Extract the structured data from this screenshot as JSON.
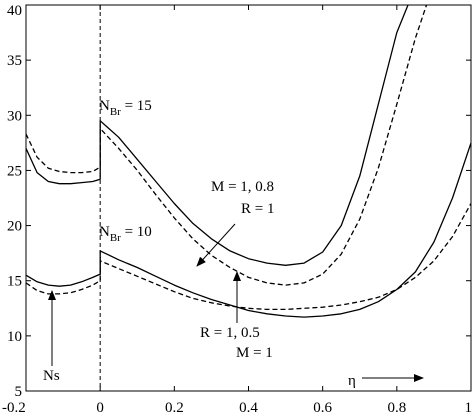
{
  "chart_data": {
    "type": "line",
    "xlim": [
      -0.2,
      1.0
    ],
    "ylim": [
      5,
      40
    ],
    "x_ticks": [
      "-0.2",
      "0",
      "0.2",
      "0.4",
      "0.6",
      "0.8",
      "1"
    ],
    "y_ticks": [
      "5",
      "10",
      "15",
      "20",
      "25",
      "30",
      "35",
      "40"
    ],
    "x_tick_values": [
      -0.2,
      0,
      0.2,
      0.4,
      0.6,
      0.8,
      1.0
    ],
    "y_tick_values": [
      5,
      10,
      15,
      20,
      25,
      30,
      35,
      40
    ],
    "vertical_dashed_x": 0,
    "grid": false,
    "series": [
      {
        "style": "solid",
        "x": [
          -0.2,
          -0.17,
          -0.14,
          -0.11,
          -0.08,
          -0.05,
          -0.02,
          0,
          0.0001,
          0.05,
          0.1,
          0.15,
          0.2,
          0.25,
          0.3,
          0.35,
          0.4,
          0.45,
          0.5,
          0.55,
          0.6,
          0.65,
          0.7,
          0.75,
          0.8,
          0.83
        ],
        "y": [
          27.0,
          24.8,
          24.0,
          23.8,
          23.8,
          23.9,
          24.0,
          24.2,
          29.5,
          28.0,
          26.0,
          24.0,
          22.0,
          20.2,
          18.8,
          17.7,
          17.0,
          16.6,
          16.4,
          16.6,
          17.6,
          20.0,
          24.5,
          31.0,
          37.5,
          40.0
        ]
      },
      {
        "style": "dashed",
        "x": [
          -0.2,
          -0.17,
          -0.14,
          -0.11,
          -0.08,
          -0.05,
          -0.02,
          0,
          0.0001,
          0.05,
          0.1,
          0.15,
          0.2,
          0.25,
          0.3,
          0.35,
          0.4,
          0.45,
          0.5,
          0.55,
          0.6,
          0.65,
          0.7,
          0.75,
          0.8,
          0.85,
          0.88
        ],
        "y": [
          28.3,
          26.2,
          25.2,
          24.9,
          24.8,
          24.8,
          24.9,
          25.3,
          28.8,
          27.0,
          25.0,
          22.8,
          20.7,
          18.8,
          17.3,
          16.2,
          15.3,
          14.8,
          14.6,
          14.8,
          15.6,
          17.4,
          20.6,
          25.2,
          31.0,
          37.0,
          40.0
        ]
      },
      {
        "style": "solid",
        "x": [
          -0.2,
          -0.17,
          -0.14,
          -0.11,
          -0.08,
          -0.05,
          -0.02,
          0,
          0.0001,
          0.05,
          0.1,
          0.15,
          0.2,
          0.25,
          0.3,
          0.35,
          0.4,
          0.45,
          0.5,
          0.55,
          0.6,
          0.65,
          0.7,
          0.75,
          0.8,
          0.85,
          0.9,
          0.95,
          1.0
        ],
        "y": [
          15.5,
          14.9,
          14.6,
          14.5,
          14.6,
          14.9,
          15.3,
          15.6,
          17.7,
          16.9,
          16.2,
          15.4,
          14.6,
          13.9,
          13.3,
          12.8,
          12.3,
          12.0,
          11.8,
          11.7,
          11.8,
          12.0,
          12.4,
          13.1,
          14.2,
          15.8,
          18.5,
          22.5,
          27.5
        ]
      },
      {
        "style": "dashed",
        "x": [
          -0.2,
          -0.17,
          -0.14,
          -0.11,
          -0.08,
          -0.05,
          -0.02,
          0,
          0.0001,
          0.05,
          0.1,
          0.15,
          0.2,
          0.25,
          0.3,
          0.35,
          0.4,
          0.45,
          0.5,
          0.55,
          0.6,
          0.65,
          0.7,
          0.75,
          0.8,
          0.85,
          0.9,
          0.95,
          1.0
        ],
        "y": [
          14.8,
          14.1,
          13.8,
          13.8,
          13.9,
          14.2,
          14.6,
          15.0,
          16.8,
          16.1,
          15.4,
          14.7,
          14.0,
          13.4,
          13.0,
          12.7,
          12.5,
          12.4,
          12.4,
          12.5,
          12.6,
          12.8,
          13.1,
          13.5,
          14.2,
          15.3,
          16.8,
          19.0,
          22.0
        ]
      }
    ],
    "annotations": {
      "nbr15_main": "N",
      "nbr15_sub": "Br",
      "nbr15_tail": " = 15",
      "nbr10_main": "N",
      "nbr10_sub": "Br",
      "nbr10_tail": " = 10",
      "m_line1": "M = 1, 0.8",
      "m_line2": "R = 1",
      "r_line1": "R = 1, 0.5",
      "r_line2": "M = 1",
      "ns_label": "Ns",
      "eta_label": "η"
    }
  }
}
